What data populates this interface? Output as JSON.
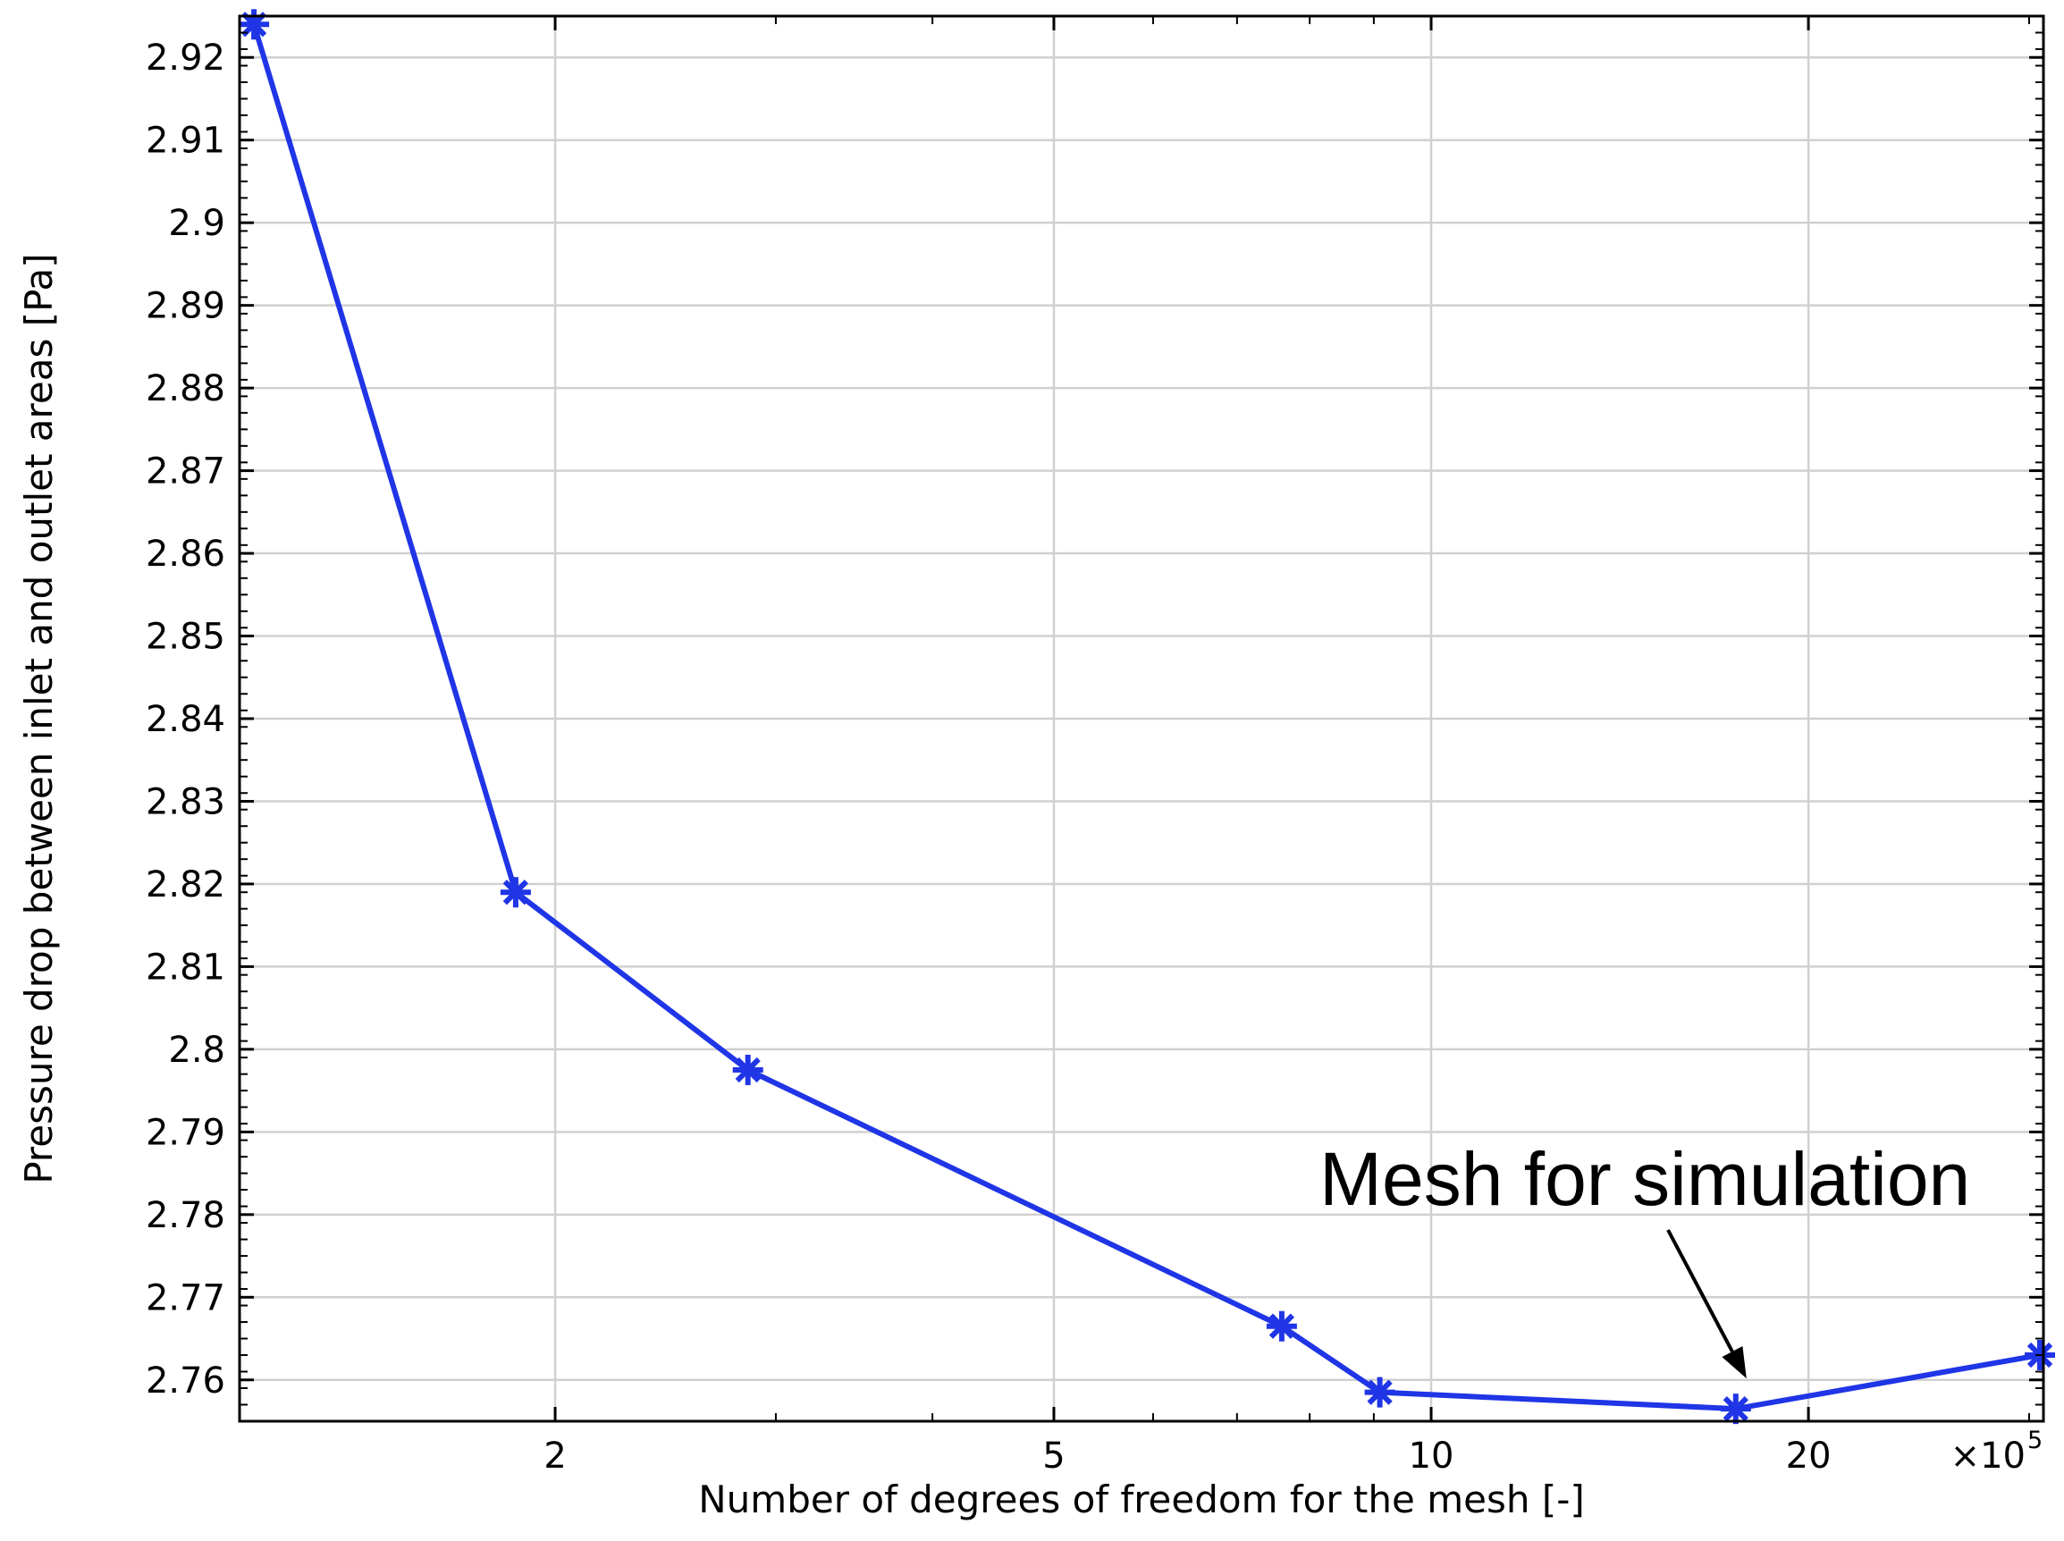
{
  "chart_data": {
    "type": "line",
    "title": "",
    "xlabel": "Number of degrees of freedom for the mesh [-]",
    "ylabel": "Pressure drop between inlet and outlet areas [Pa]",
    "x_scale": "log",
    "x_multiplier_label": "×10",
    "x_multiplier_exponent": "5",
    "xlim": [
      1.12,
      30.8
    ],
    "ylim": [
      2.755,
      2.925
    ],
    "x_ticks": [
      2,
      5,
      10,
      20
    ],
    "x_tick_labels": [
      "2",
      "5",
      "10",
      "20"
    ],
    "y_ticks": [
      2.76,
      2.77,
      2.78,
      2.79,
      2.8,
      2.81,
      2.82,
      2.83,
      2.84,
      2.85,
      2.86,
      2.87,
      2.88,
      2.89,
      2.9,
      2.91,
      2.92
    ],
    "y_tick_labels": [
      "2.76",
      "2.77",
      "2.78",
      "2.79",
      "2.8",
      "2.81",
      "2.82",
      "2.83",
      "2.84",
      "2.85",
      "2.86",
      "2.87",
      "2.88",
      "2.89",
      "2.9",
      "2.91",
      "2.92"
    ],
    "grid": true,
    "series": [
      {
        "color": "#1f35e6",
        "marker": "asterisk",
        "x": [
          1.15,
          1.86,
          2.85,
          7.6,
          9.1,
          17.5,
          30.6
        ],
        "y": [
          2.924,
          2.819,
          2.7975,
          2.7665,
          2.7585,
          2.7565,
          2.763
        ]
      }
    ],
    "annotations": [
      {
        "text": "Mesh for simulation",
        "points_to_x": 17.5,
        "points_to_y": 2.7565
      }
    ]
  }
}
